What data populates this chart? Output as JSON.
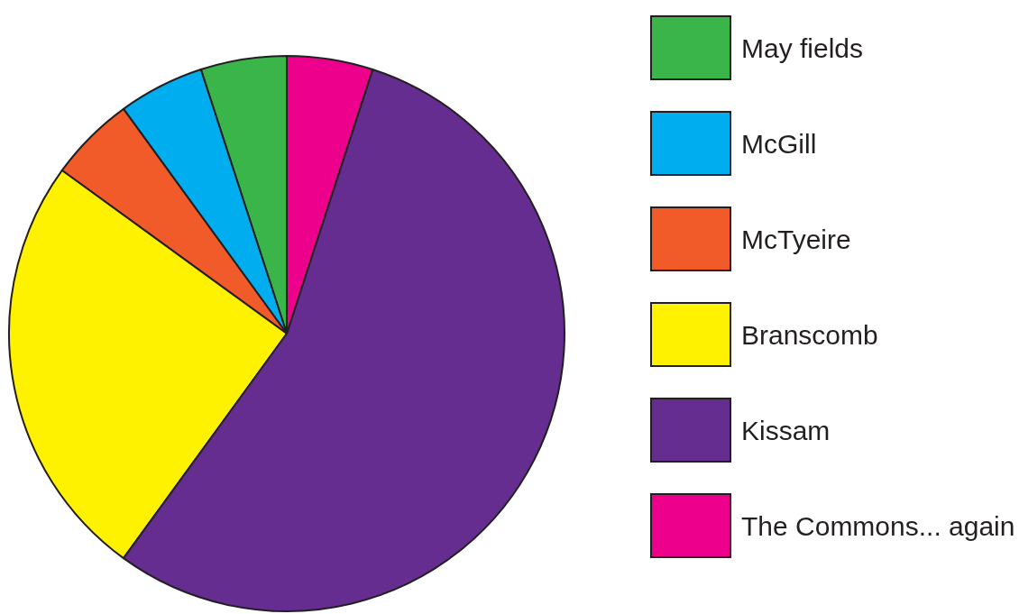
{
  "chart_data": {
    "type": "pie",
    "categories": [
      "May fields",
      "McGill",
      "McTyeire",
      "Branscomb",
      "Kissam",
      "The Commons... again"
    ],
    "values": [
      5,
      5,
      5,
      25,
      55,
      5
    ],
    "colors": [
      "#39b54a",
      "#00aeef",
      "#f15a29",
      "#fff200",
      "#662d91",
      "#ec008c"
    ],
    "legend": "right"
  }
}
